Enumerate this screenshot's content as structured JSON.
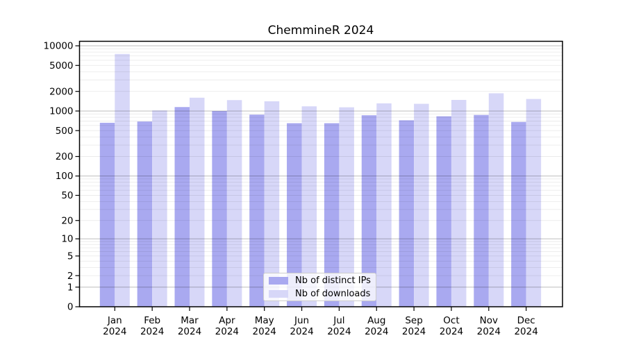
{
  "chart_data": {
    "type": "bar",
    "title": "ChemmineR 2024",
    "categories": [
      "Jan",
      "Feb",
      "Mar",
      "Apr",
      "May",
      "Jun",
      "Jul",
      "Aug",
      "Sep",
      "Oct",
      "Nov",
      "Dec"
    ],
    "category_year": "2024",
    "series": [
      {
        "name": "Nb of distinct IPs",
        "color": "#a9a9f0",
        "values": [
          660,
          690,
          1150,
          1000,
          880,
          650,
          650,
          860,
          720,
          830,
          870,
          680
        ]
      },
      {
        "name": "Nb of downloads",
        "color": "#d7d7f8",
        "values": [
          7500,
          1020,
          1600,
          1470,
          1410,
          1180,
          1140,
          1310,
          1290,
          1480,
          1870,
          1530
        ]
      }
    ],
    "yticks": [
      0,
      1,
      2,
      5,
      10,
      20,
      50,
      100,
      200,
      500,
      1000,
      2000,
      5000,
      10000
    ],
    "scale": "log10(value+1)",
    "ylim": [
      0,
      10000
    ],
    "grid": true,
    "legend_position": "inside-bottom-center",
    "colors": {
      "axis": "#000000",
      "major_grid": "rgba(0,0,0,0.26)",
      "minor_grid": "rgba(0,0,0,0.08)",
      "background": "#ffffff"
    }
  }
}
